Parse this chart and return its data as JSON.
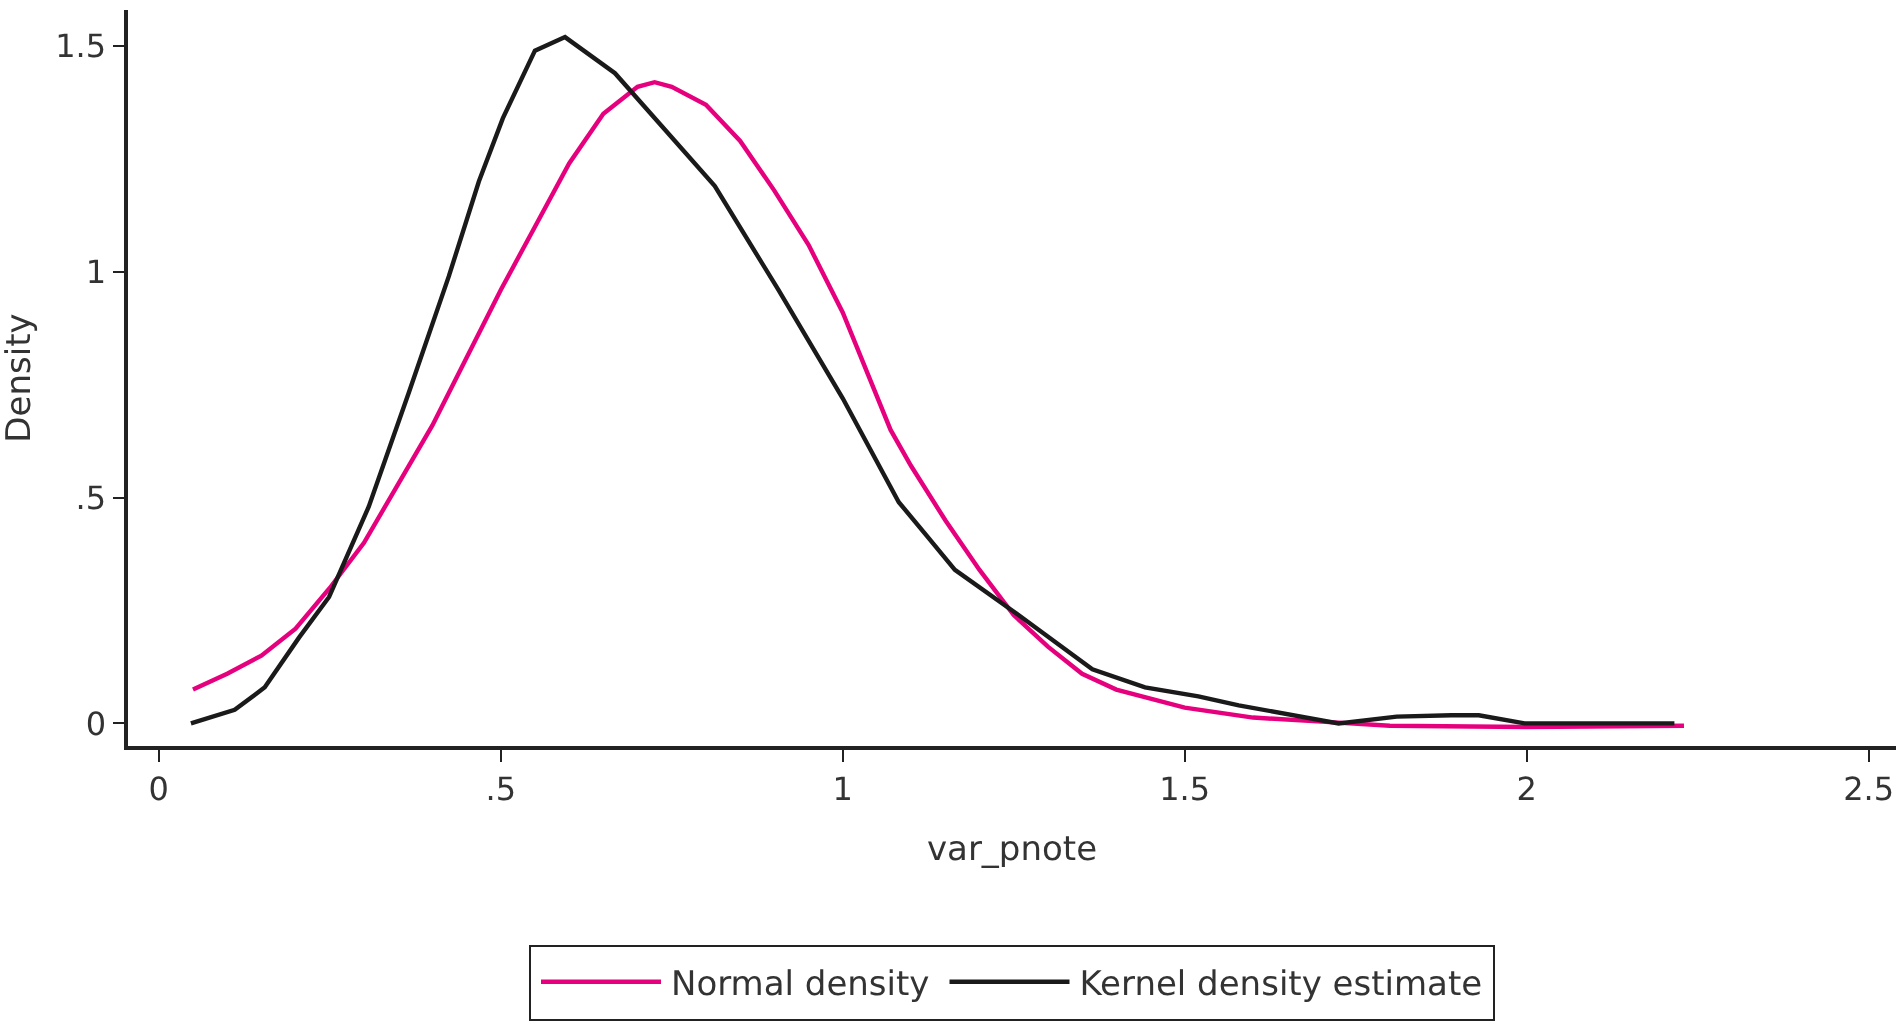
{
  "chart_data": {
    "type": "line",
    "xlabel": "var_pnote",
    "ylabel": "Density",
    "xlim": [
      -0.045,
      2.54
    ],
    "ylim": [
      -0.05,
      1.58
    ],
    "xticks": [
      0,
      {
        "value": 0.5,
        "label": ".5"
      },
      1,
      1.5,
      2,
      2.5
    ],
    "yticks": [
      0,
      {
        "value": 0.5,
        "label": ".5"
      },
      1,
      1.5
    ],
    "legend": "bottom",
    "marker": "none",
    "line_style": "solid",
    "series": [
      {
        "name": "Normal density",
        "color": "#e6007e",
        "x": [
          0.05,
          0.1,
          0.15,
          0.2,
          0.25,
          0.3,
          0.35,
          0.4,
          0.45,
          0.5,
          0.55,
          0.6,
          0.65,
          0.7,
          0.725,
          0.75,
          0.8,
          0.85,
          0.9,
          0.95,
          1.0,
          1.07,
          1.1,
          1.15,
          1.2,
          1.25,
          1.3,
          1.35,
          1.4,
          1.5,
          1.6,
          1.7,
          1.8,
          2.0,
          2.23
        ],
        "values": [
          0.075,
          0.11,
          0.15,
          0.21,
          0.3,
          0.4,
          0.53,
          0.66,
          0.81,
          0.96,
          1.1,
          1.24,
          1.35,
          1.41,
          1.42,
          1.41,
          1.37,
          1.29,
          1.18,
          1.06,
          0.91,
          0.65,
          0.57,
          0.45,
          0.34,
          0.24,
          0.17,
          0.11,
          0.075,
          0.035,
          0.013,
          0.004,
          -0.005,
          -0.008,
          -0.005
        ]
      },
      {
        "name": "Kernel density estimate",
        "color": "#1a1a1a",
        "x": [
          0.047,
          0.111,
          0.155,
          0.205,
          0.249,
          0.307,
          0.365,
          0.424,
          0.468,
          0.503,
          0.55,
          0.594,
          0.667,
          0.813,
          0.906,
          1.0,
          1.082,
          1.126,
          1.164,
          1.257,
          1.365,
          1.442,
          1.52,
          1.579,
          1.725,
          1.81,
          1.89,
          1.93,
          1.997,
          2.216
        ],
        "values": [
          0.0,
          0.03,
          0.08,
          0.19,
          0.28,
          0.48,
          0.73,
          0.99,
          1.2,
          1.34,
          1.49,
          1.52,
          1.44,
          1.19,
          0.96,
          0.72,
          0.49,
          0.41,
          0.34,
          0.24,
          0.12,
          0.08,
          0.06,
          0.04,
          0.0,
          0.015,
          0.018,
          0.018,
          0.0,
          0.0
        ]
      }
    ]
  }
}
